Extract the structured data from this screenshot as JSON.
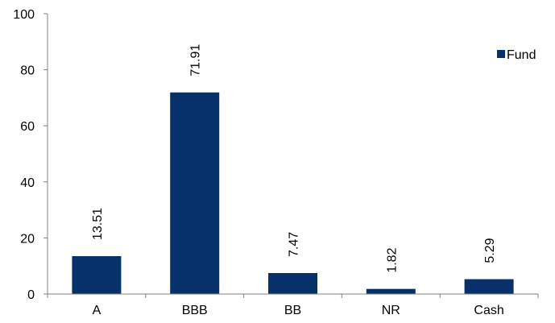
{
  "chart_data": {
    "type": "bar",
    "categories": [
      "A",
      "BBB",
      "BB",
      "NR",
      "Cash"
    ],
    "series": [
      {
        "name": "Fund",
        "values": [
          13.51,
          71.91,
          7.47,
          1.82,
          5.29
        ]
      }
    ],
    "data_labels": [
      "13.51",
      "71.91",
      "7.47",
      "1.82",
      "5.29"
    ],
    "ylim": [
      0,
      100
    ],
    "yticks": [
      0,
      20,
      40,
      60,
      80,
      100
    ],
    "grid": false,
    "legend_position": "top-right",
    "colors": {
      "bar": "#06316A"
    },
    "xlabel": "",
    "ylabel": "",
    "title": ""
  }
}
